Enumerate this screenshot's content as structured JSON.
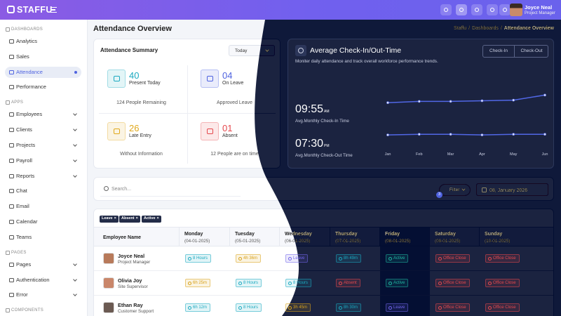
{
  "header": {
    "logo": "STAFFU",
    "user_name": "Joyce Neal",
    "user_role": "Project Manager"
  },
  "sidebar": {
    "sections": [
      {
        "title": "DASHBOARDS",
        "items": [
          {
            "label": "Analytics"
          },
          {
            "label": "Sales"
          },
          {
            "label": "Attendance",
            "active": true
          },
          {
            "label": "Performance"
          }
        ]
      },
      {
        "title": "APPS",
        "items": [
          {
            "label": "Employees",
            "expandable": true
          },
          {
            "label": "Clients",
            "expandable": true
          },
          {
            "label": "Projects",
            "expandable": true
          },
          {
            "label": "Payroll",
            "expandable": true
          },
          {
            "label": "Reports",
            "expandable": true
          },
          {
            "label": "Chat"
          },
          {
            "label": "Email"
          },
          {
            "label": "Calendar"
          },
          {
            "label": "Teams"
          }
        ]
      },
      {
        "title": "PAGES",
        "items": [
          {
            "label": "Pages",
            "expandable": true
          },
          {
            "label": "Authentication",
            "expandable": true
          },
          {
            "label": "Error",
            "expandable": true
          }
        ]
      },
      {
        "title": "COMPONENTS",
        "items": []
      }
    ]
  },
  "page": {
    "title": "Attendance Overview",
    "breadcrumb": [
      "Staffu",
      "Dashboards",
      "Attendance Overview"
    ],
    "breadcrumb_separator": "/"
  },
  "summary": {
    "title": "Attendance Summary",
    "period": "Today",
    "stats": [
      {
        "value": "40",
        "label": "Present Today",
        "note": "124 People Remaining",
        "color": "#1ba9c0"
      },
      {
        "value": "04",
        "label": "On Leave",
        "note": "Approved Leave",
        "color": "#4f63e0"
      },
      {
        "value": "26",
        "label": "Late Entry",
        "note": "Without Information",
        "color": "#e0a81b"
      },
      {
        "value": "01",
        "label": "Absent",
        "note": "12 People are on time",
        "color": "#e5484d"
      }
    ]
  },
  "checkin": {
    "title": "Average Check-In/Out-Time",
    "buttons": [
      "Check-In",
      "Check-Out"
    ],
    "subtitle": "Moniter daily attendance and track overall workforce performance trends.",
    "times": [
      {
        "time": "09:55",
        "suffix": "AM",
        "label": "Avg.Monthly Check-In Time"
      },
      {
        "time": "07:30",
        "suffix": "PM",
        "label": "Avg.Monthly Check-Out Time"
      }
    ]
  },
  "chart_data": {
    "type": "line",
    "categories": [
      "Jan",
      "Feb",
      "Mar",
      "Apr",
      "May",
      "Jun"
    ],
    "series": [
      {
        "color": "#5167e6",
        "values": [
          72,
          74,
          74,
          75,
          76,
          84
        ]
      },
      {
        "color": "#5167e6",
        "values": [
          21,
          22,
          22,
          21,
          22,
          22
        ]
      }
    ],
    "ylim": [
      0,
      100
    ]
  },
  "search": {
    "placeholder": "Search...",
    "filter": "Filter",
    "filter_count": "3",
    "date": "08, January 2026"
  },
  "table": {
    "chips": [
      "Leave",
      "Absent",
      "Active"
    ],
    "chip_close": "×",
    "columns": [
      {
        "day": "Employee Name"
      },
      {
        "day": "Monday",
        "date": "(04-01-2025)"
      },
      {
        "day": "Tuesday",
        "date": "(05-01-2025)"
      },
      {
        "day": "Wednesday",
        "date": "(06-01-2025)"
      },
      {
        "day": "Thursday",
        "date": "(07-01-2025)"
      },
      {
        "day": "Friday",
        "date": "(08-01-2025)",
        "highlight": true
      },
      {
        "day": "Saturday",
        "date": "(09-01-2025)"
      },
      {
        "day": "Sunday",
        "date": "(10-01-2025)"
      }
    ],
    "rows": [
      {
        "name": "Joyce Neal",
        "role": "Project Manager",
        "avatar_color": "#b87a5a",
        "cells": [
          {
            "text": "8 Hours",
            "color": "#1ba9c0"
          },
          {
            "text": "4h 36m",
            "color": "#d9a21b"
          },
          {
            "text": "Leave",
            "color": "#6f63e8"
          },
          {
            "text": "8h 49m",
            "color": "#1ba9c0"
          },
          {
            "text": "Active",
            "color": "#20b3a0"
          },
          {
            "text": "Office Close",
            "color": "#e5484d"
          },
          {
            "text": "Office Close",
            "color": "#e5484d"
          }
        ]
      },
      {
        "name": "Olivia Joy",
        "role": "Site Supervisor",
        "avatar_color": "#c9866a",
        "cells": [
          {
            "text": "6h 25m",
            "color": "#d9a21b"
          },
          {
            "text": "8 Hours",
            "color": "#1ba9c0"
          },
          {
            "text": "8 Hours",
            "color": "#1ba9c0"
          },
          {
            "text": "Absent",
            "color": "#e5484d"
          },
          {
            "text": "Active",
            "color": "#20b3a0"
          },
          {
            "text": "Office Close",
            "color": "#e5484d"
          },
          {
            "text": "Office Close",
            "color": "#e5484d"
          }
        ]
      },
      {
        "name": "Ethan Ray",
        "role": "Customer Support",
        "avatar_color": "#6b5a52",
        "cells": [
          {
            "text": "6h 12m",
            "color": "#1ba9c0"
          },
          {
            "text": "8 Hours",
            "color": "#1ba9c0"
          },
          {
            "text": "3h 45m",
            "color": "#d9a21b"
          },
          {
            "text": "8h 30m",
            "color": "#1ba9c0"
          },
          {
            "text": "Leave",
            "color": "#6f63e8"
          },
          {
            "text": "Office Close",
            "color": "#e5484d"
          },
          {
            "text": "Office Close",
            "color": "#e5484d"
          }
        ]
      }
    ]
  }
}
